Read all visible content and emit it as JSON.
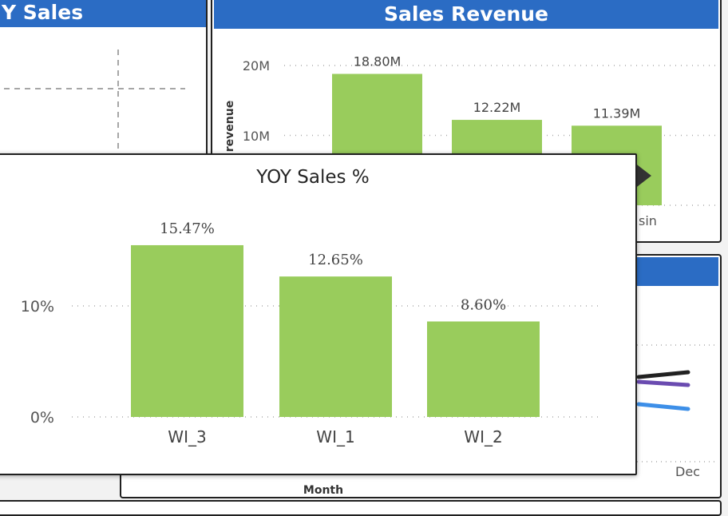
{
  "left_panel": {
    "title": "Y Sales"
  },
  "revenue_panel": {
    "title": "Sales Revenue",
    "ylabel": "revenue",
    "ticks": [
      "20M",
      "10M"
    ],
    "bars": [
      {
        "value": 18.8,
        "label": "18.80M"
      },
      {
        "value": 12.22,
        "label": "12.22M"
      },
      {
        "value": 11.39,
        "label": "11.39M"
      }
    ],
    "partial_label": "sin"
  },
  "trend_panel": {
    "end_label": "Dec",
    "xlabel": "Month"
  },
  "colors": {
    "accent": "#2b6cc4",
    "bar": "#99cc5c",
    "line1": "#222222",
    "line2": "#6a4bb0",
    "line3": "#3d8fe8"
  },
  "chart_data": {
    "type": "bar",
    "title": "YOY Sales %",
    "categories": [
      "WI_3",
      "WI_1",
      "WI_2"
    ],
    "values": [
      15.47,
      12.65,
      8.6
    ],
    "data_labels": [
      "15.47%",
      "12.65%",
      "8.60%"
    ],
    "ytick_labels": [
      "10%",
      "0%"
    ],
    "yticks": [
      10,
      0
    ],
    "ylim": [
      0,
      20
    ],
    "xlabel": "",
    "ylabel": "",
    "grid": true
  }
}
